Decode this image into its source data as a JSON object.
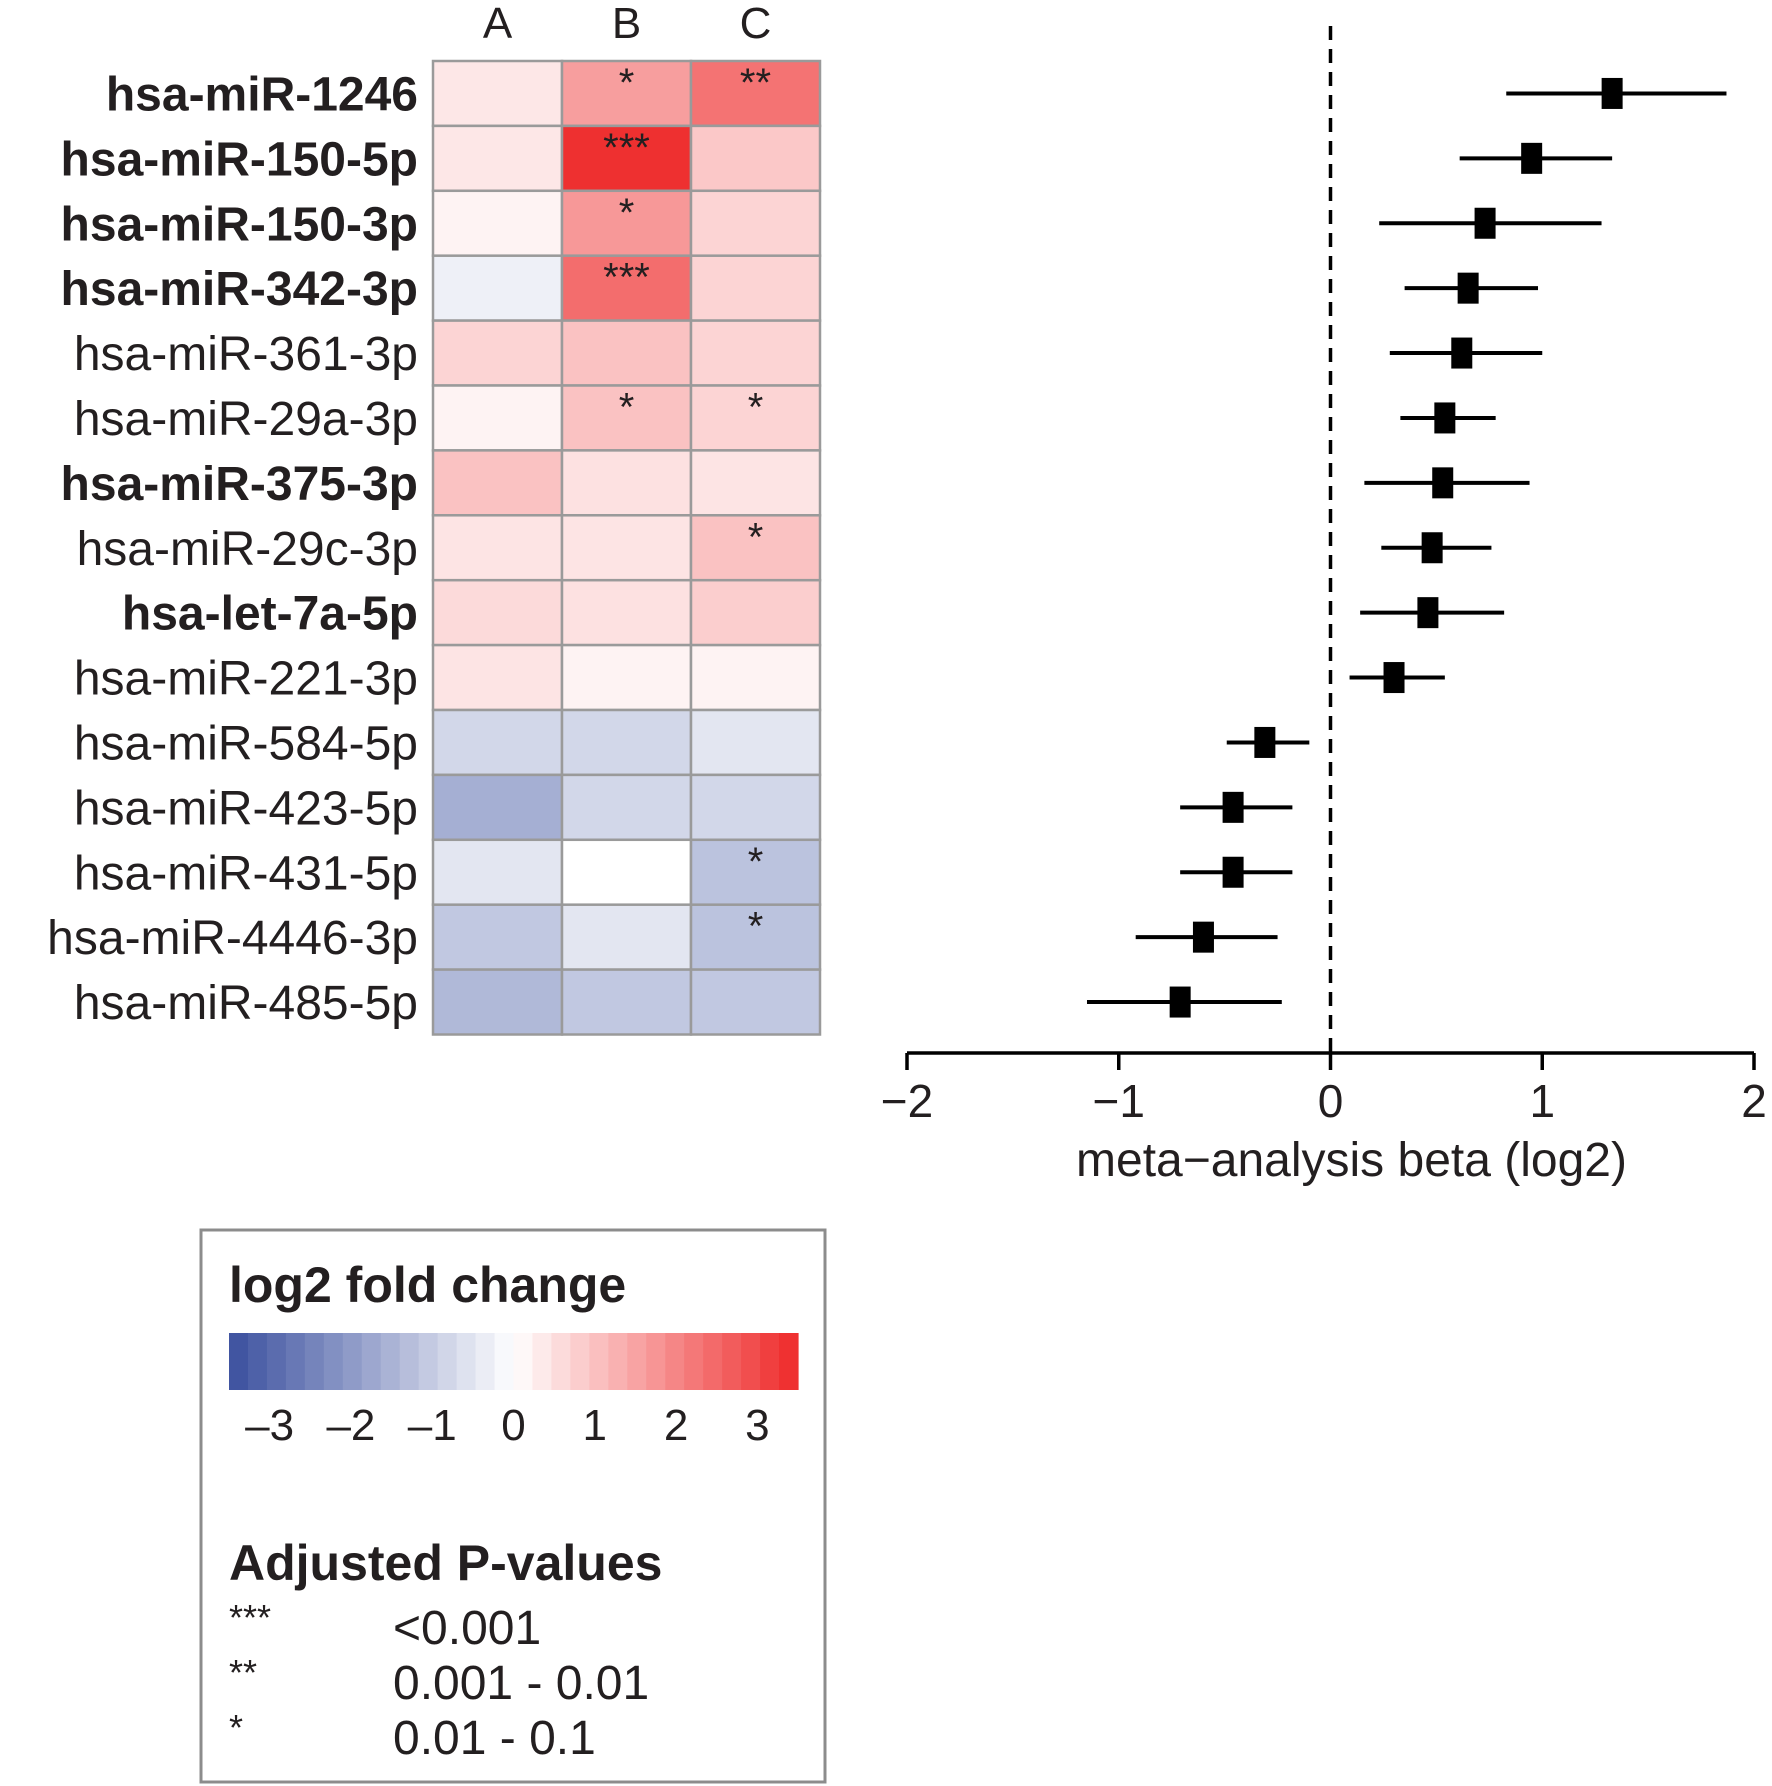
{
  "chart_data": [
    {
      "type": "heatmap",
      "title": "",
      "columns": [
        "A",
        "B",
        "C"
      ],
      "rows": [
        {
          "label": "hsa-miR-1246",
          "bold": true,
          "values": [
            0.4,
            1.6,
            2.3
          ],
          "stars": [
            "",
            "*",
            "**"
          ]
        },
        {
          "label": "hsa-miR-150-5p",
          "bold": true,
          "values": [
            0.4,
            3.4,
            0.9
          ],
          "stars": [
            "",
            "***",
            ""
          ]
        },
        {
          "label": "hsa-miR-150-3p",
          "bold": true,
          "values": [
            0.2,
            1.7,
            0.7
          ],
          "stars": [
            "",
            "*",
            ""
          ]
        },
        {
          "label": "hsa-miR-342-3p",
          "bold": true,
          "values": [
            -0.3,
            2.4,
            0.7
          ],
          "stars": [
            "",
            "***",
            ""
          ]
        },
        {
          "label": "hsa-miR-361-3p",
          "bold": false,
          "values": [
            0.7,
            1.0,
            0.7
          ],
          "stars": [
            "",
            "",
            ""
          ]
        },
        {
          "label": "hsa-miR-29a-3p",
          "bold": false,
          "values": [
            0.2,
            1.0,
            0.7
          ],
          "stars": [
            "",
            "*",
            "*"
          ]
        },
        {
          "label": "hsa-miR-375-3p",
          "bold": true,
          "values": [
            1.0,
            0.5,
            0.45
          ],
          "stars": [
            "",
            "",
            ""
          ]
        },
        {
          "label": "hsa-miR-29c-3p",
          "bold": false,
          "values": [
            0.45,
            0.45,
            1.0
          ],
          "stars": [
            "",
            "",
            "*"
          ]
        },
        {
          "label": "hsa-let-7a-5p",
          "bold": true,
          "values": [
            0.6,
            0.5,
            0.8
          ],
          "stars": [
            "",
            "",
            ""
          ]
        },
        {
          "label": "hsa-miR-221-3p",
          "bold": false,
          "values": [
            0.45,
            0.2,
            0.2
          ],
          "stars": [
            "",
            "",
            ""
          ]
        },
        {
          "label": "hsa-miR-584-5p",
          "bold": false,
          "values": [
            -0.8,
            -0.8,
            -0.5
          ],
          "stars": [
            "",
            "",
            ""
          ]
        },
        {
          "label": "hsa-miR-423-5p",
          "bold": false,
          "values": [
            -1.6,
            -0.8,
            -0.8
          ],
          "stars": [
            "",
            "",
            ""
          ]
        },
        {
          "label": "hsa-miR-431-5p",
          "bold": false,
          "values": [
            -0.5,
            0.0,
            -1.2
          ],
          "stars": [
            "",
            "",
            "*"
          ]
        },
        {
          "label": "hsa-miR-4446-3p",
          "bold": false,
          "values": [
            -1.1,
            -0.5,
            -1.2
          ],
          "stars": [
            "",
            "",
            "*"
          ]
        },
        {
          "label": "hsa-miR-485-5p",
          "bold": false,
          "values": [
            -1.4,
            -1.1,
            -1.1
          ],
          "stars": [
            "",
            "",
            ""
          ]
        }
      ],
      "color_scale": {
        "min": -3.5,
        "max": 3.5,
        "low_color": "#3a4f9e",
        "mid_color": "#ffffff",
        "high_color": "#ee2a2a",
        "grid_color": "#9a9a9a"
      }
    },
    {
      "type": "forest",
      "xlabel": "meta−analysis beta (log2)",
      "xlim": [
        -2,
        2
      ],
      "xticks": [
        -2,
        -1,
        0,
        1,
        2
      ],
      "xtick_labels": [
        "−2",
        "−1",
        "0",
        "1",
        "2"
      ],
      "reference_line": 0,
      "points": [
        {
          "label": "hsa-miR-1246",
          "beta": 1.33,
          "lo": 0.83,
          "hi": 1.87
        },
        {
          "label": "hsa-miR-150-5p",
          "beta": 0.95,
          "lo": 0.61,
          "hi": 1.33
        },
        {
          "label": "hsa-miR-150-3p",
          "beta": 0.73,
          "lo": 0.23,
          "hi": 1.28
        },
        {
          "label": "hsa-miR-342-3p",
          "beta": 0.65,
          "lo": 0.35,
          "hi": 0.98
        },
        {
          "label": "hsa-miR-361-3p",
          "beta": 0.62,
          "lo": 0.28,
          "hi": 1.0
        },
        {
          "label": "hsa-miR-29a-3p",
          "beta": 0.54,
          "lo": 0.33,
          "hi": 0.78
        },
        {
          "label": "hsa-miR-375-3p",
          "beta": 0.53,
          "lo": 0.16,
          "hi": 0.94
        },
        {
          "label": "hsa-miR-29c-3p",
          "beta": 0.48,
          "lo": 0.24,
          "hi": 0.76
        },
        {
          "label": "hsa-let-7a-5p",
          "beta": 0.46,
          "lo": 0.14,
          "hi": 0.82
        },
        {
          "label": "hsa-miR-221-3p",
          "beta": 0.3,
          "lo": 0.09,
          "hi": 0.54
        },
        {
          "label": "hsa-miR-584-5p",
          "beta": -0.31,
          "lo": -0.49,
          "hi": -0.1
        },
        {
          "label": "hsa-miR-423-5p",
          "beta": -0.46,
          "lo": -0.71,
          "hi": -0.18
        },
        {
          "label": "hsa-miR-431-5p",
          "beta": -0.46,
          "lo": -0.71,
          "hi": -0.18
        },
        {
          "label": "hsa-miR-4446-3p",
          "beta": -0.6,
          "lo": -0.92,
          "hi": -0.25
        },
        {
          "label": "hsa-miR-485-5p",
          "beta": -0.71,
          "lo": -1.15,
          "hi": -0.23
        }
      ]
    }
  ],
  "legend": {
    "color_title": "log2 fold change",
    "color_ticks": [
      -3,
      -2,
      -1,
      0,
      1,
      2,
      3
    ],
    "color_tick_labels": [
      "–3",
      "–2",
      "–1",
      "0",
      "1",
      "2",
      "3"
    ],
    "pvalue_title": "Adjusted P-values",
    "pvalue_entries": [
      {
        "stars": "***",
        "range": "<0.001"
      },
      {
        "stars": "**",
        "range": "0.001 - 0.01"
      },
      {
        "stars": "*",
        "range": "0.01 - 0.1"
      }
    ]
  }
}
